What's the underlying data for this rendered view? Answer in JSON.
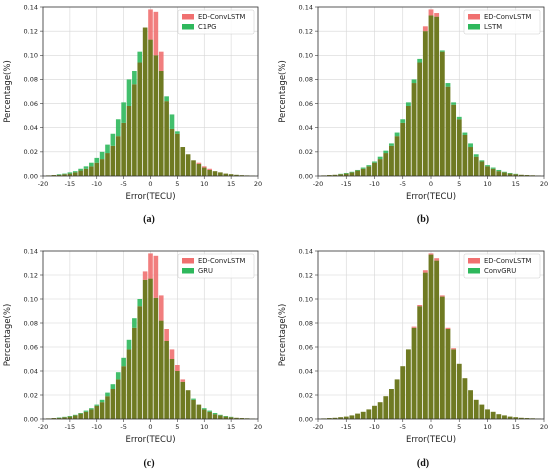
{
  "colors": {
    "ed_convlstm": "#f07070",
    "comparison": "#2eb85c",
    "overlap": "#6f7a22",
    "grid": "#d6d6d6"
  },
  "chart_data": [
    {
      "id": "a",
      "type": "bar",
      "caption": "(a)",
      "xlabel": "Error(TECU)",
      "ylabel": "Percentage(%)",
      "xlim": [
        -20,
        20
      ],
      "ylim": [
        0,
        0.14
      ],
      "xticks": [
        "-20",
        "-15",
        "-10",
        "-5",
        "0",
        "5",
        "10",
        "15",
        "20"
      ],
      "yticks": [
        "0.00",
        "0.02",
        "0.04",
        "0.06",
        "0.08",
        "0.10",
        "0.12",
        "0.14"
      ],
      "grid": true,
      "legend_position": "top-right",
      "bin_centers": [
        -19,
        -18,
        -17,
        -16,
        -15,
        -14,
        -13,
        -12,
        -11,
        -10,
        -9,
        -8,
        -7,
        -6,
        -5,
        -4,
        -3,
        -2,
        -1,
        0,
        1,
        2,
        3,
        4,
        5,
        6,
        7,
        8,
        9,
        10,
        11,
        12,
        13,
        14,
        15,
        16,
        17,
        18,
        19
      ],
      "series": [
        {
          "name": "ED-ConvLSTM",
          "values": [
            0.0005,
            0.0008,
            0.001,
            0.0015,
            0.002,
            0.003,
            0.0045,
            0.006,
            0.008,
            0.011,
            0.014,
            0.019,
            0.025,
            0.033,
            0.044,
            0.058,
            0.076,
            0.094,
            0.123,
            0.138,
            0.136,
            0.103,
            0.062,
            0.039,
            0.035,
            0.024,
            0.018,
            0.013,
            0.011,
            0.008,
            0.006,
            0.004,
            0.003,
            0.002,
            0.0015,
            0.001,
            0.0008,
            0.0006,
            0.0004
          ]
        },
        {
          "name": "C1PG",
          "values": [
            0.0005,
            0.001,
            0.0015,
            0.002,
            0.003,
            0.004,
            0.006,
            0.008,
            0.011,
            0.015,
            0.02,
            0.026,
            0.035,
            0.047,
            0.061,
            0.08,
            0.087,
            0.103,
            0.123,
            0.113,
            0.1,
            0.087,
            0.066,
            0.051,
            0.037,
            0.024,
            0.018,
            0.013,
            0.01,
            0.007,
            0.005,
            0.004,
            0.003,
            0.002,
            0.0015,
            0.001,
            0.0007,
            0.0005,
            0.0003
          ]
        }
      ]
    },
    {
      "id": "b",
      "type": "bar",
      "caption": "(b)",
      "xlabel": "Error(TECU)",
      "ylabel": "Percentage(%)",
      "xlim": [
        -20,
        20
      ],
      "ylim": [
        0,
        0.14
      ],
      "xticks": [
        "-20",
        "-15",
        "-10",
        "-5",
        "0",
        "5",
        "10",
        "15",
        "20"
      ],
      "yticks": [
        "0.00",
        "0.02",
        "0.04",
        "0.06",
        "0.08",
        "0.10",
        "0.12",
        "0.14"
      ],
      "grid": true,
      "legend_position": "top-right",
      "bin_centers": [
        -19,
        -18,
        -17,
        -16,
        -15,
        -14,
        -13,
        -12,
        -11,
        -10,
        -9,
        -8,
        -7,
        -6,
        -5,
        -4,
        -3,
        -2,
        -1,
        0,
        1,
        2,
        3,
        4,
        5,
        6,
        7,
        8,
        9,
        10,
        11,
        12,
        13,
        14,
        15,
        16,
        17,
        18,
        19
      ],
      "series": [
        {
          "name": "ED-ConvLSTM",
          "values": [
            0.0005,
            0.0008,
            0.001,
            0.0015,
            0.002,
            0.003,
            0.0045,
            0.006,
            0.008,
            0.011,
            0.014,
            0.019,
            0.025,
            0.033,
            0.044,
            0.058,
            0.077,
            0.094,
            0.124,
            0.138,
            0.135,
            0.103,
            0.074,
            0.059,
            0.047,
            0.034,
            0.024,
            0.016,
            0.012,
            0.008,
            0.006,
            0.004,
            0.003,
            0.002,
            0.0015,
            0.001,
            0.0008,
            0.0006,
            0.0004
          ]
        },
        {
          "name": "LSTM",
          "values": [
            0.0006,
            0.0009,
            0.0012,
            0.0018,
            0.0025,
            0.0035,
            0.005,
            0.007,
            0.009,
            0.012,
            0.016,
            0.021,
            0.027,
            0.036,
            0.047,
            0.061,
            0.08,
            0.097,
            0.12,
            0.133,
            0.132,
            0.104,
            0.077,
            0.061,
            0.049,
            0.036,
            0.027,
            0.018,
            0.013,
            0.009,
            0.007,
            0.005,
            0.0035,
            0.0025,
            0.0018,
            0.0012,
            0.0009,
            0.0006,
            0.0004
          ]
        }
      ]
    },
    {
      "id": "c",
      "type": "bar",
      "caption": "(c)",
      "xlabel": "Error(TECU)",
      "ylabel": "Percentage(%)",
      "xlim": [
        -20,
        20
      ],
      "ylim": [
        0,
        0.14
      ],
      "xticks": [
        "-20",
        "-15",
        "-10",
        "-5",
        "0",
        "5",
        "10",
        "15",
        "20"
      ],
      "yticks": [
        "0.00",
        "0.02",
        "0.04",
        "0.06",
        "0.08",
        "0.10",
        "0.12",
        "0.14"
      ],
      "grid": true,
      "legend_position": "top-right",
      "bin_centers": [
        -19,
        -18,
        -17,
        -16,
        -15,
        -14,
        -13,
        -12,
        -11,
        -10,
        -9,
        -8,
        -7,
        -6,
        -5,
        -4,
        -3,
        -2,
        -1,
        0,
        1,
        2,
        3,
        4,
        5,
        6,
        7,
        8,
        9,
        10,
        11,
        12,
        13,
        14,
        15,
        16,
        17,
        18,
        19
      ],
      "series": [
        {
          "name": "ED-ConvLSTM",
          "values": [
            0.0005,
            0.0008,
            0.001,
            0.0015,
            0.002,
            0.003,
            0.0045,
            0.006,
            0.008,
            0.011,
            0.014,
            0.019,
            0.025,
            0.033,
            0.044,
            0.058,
            0.076,
            0.094,
            0.123,
            0.138,
            0.136,
            0.103,
            0.075,
            0.058,
            0.045,
            0.033,
            0.024,
            0.016,
            0.012,
            0.008,
            0.006,
            0.004,
            0.003,
            0.002,
            0.0015,
            0.001,
            0.0008,
            0.0006,
            0.0004
          ]
        },
        {
          "name": "GRU",
          "values": [
            0.0006,
            0.0009,
            0.0013,
            0.0018,
            0.0025,
            0.0035,
            0.005,
            0.007,
            0.009,
            0.012,
            0.016,
            0.022,
            0.029,
            0.039,
            0.051,
            0.066,
            0.084,
            0.1,
            0.116,
            0.117,
            0.101,
            0.082,
            0.065,
            0.05,
            0.04,
            0.031,
            0.024,
            0.017,
            0.012,
            0.009,
            0.007,
            0.005,
            0.0035,
            0.0025,
            0.0018,
            0.0012,
            0.0009,
            0.0006,
            0.0004
          ]
        }
      ]
    },
    {
      "id": "d",
      "type": "bar",
      "caption": "(d)",
      "xlabel": "Error(TECU)",
      "ylabel": "Percentage(%)",
      "xlim": [
        -20,
        20
      ],
      "ylim": [
        0,
        0.14
      ],
      "xticks": [
        "-20",
        "-15",
        "-10",
        "-5",
        "0",
        "5",
        "10",
        "15",
        "20"
      ],
      "yticks": [
        "0.00",
        "0.02",
        "0.04",
        "0.06",
        "0.08",
        "0.10",
        "0.12",
        "0.14"
      ],
      "grid": true,
      "legend_position": "top-right",
      "bin_centers": [
        -19,
        -18,
        -17,
        -16,
        -15,
        -14,
        -13,
        -12,
        -11,
        -10,
        -9,
        -8,
        -7,
        -6,
        -5,
        -4,
        -3,
        -2,
        -1,
        0,
        1,
        2,
        3,
        4,
        5,
        6,
        7,
        8,
        9,
        10,
        11,
        12,
        13,
        14,
        15,
        16,
        17,
        18,
        19
      ],
      "series": [
        {
          "name": "ED-ConvLSTM",
          "values": [
            0.0005,
            0.0008,
            0.001,
            0.0015,
            0.002,
            0.003,
            0.0045,
            0.006,
            0.008,
            0.011,
            0.014,
            0.019,
            0.025,
            0.033,
            0.044,
            0.058,
            0.077,
            0.095,
            0.124,
            0.138,
            0.134,
            0.103,
            0.076,
            0.059,
            0.046,
            0.034,
            0.024,
            0.016,
            0.012,
            0.008,
            0.006,
            0.004,
            0.003,
            0.002,
            0.0015,
            0.001,
            0.0008,
            0.0006,
            0.0004
          ]
        },
        {
          "name": "ConvGRU",
          "values": [
            0.0005,
            0.0008,
            0.001,
            0.0015,
            0.002,
            0.003,
            0.0045,
            0.006,
            0.008,
            0.011,
            0.014,
            0.019,
            0.025,
            0.033,
            0.044,
            0.058,
            0.076,
            0.094,
            0.122,
            0.137,
            0.132,
            0.102,
            0.075,
            0.058,
            0.046,
            0.034,
            0.024,
            0.016,
            0.012,
            0.008,
            0.006,
            0.004,
            0.003,
            0.002,
            0.0015,
            0.001,
            0.0008,
            0.0006,
            0.0004
          ]
        }
      ]
    }
  ]
}
